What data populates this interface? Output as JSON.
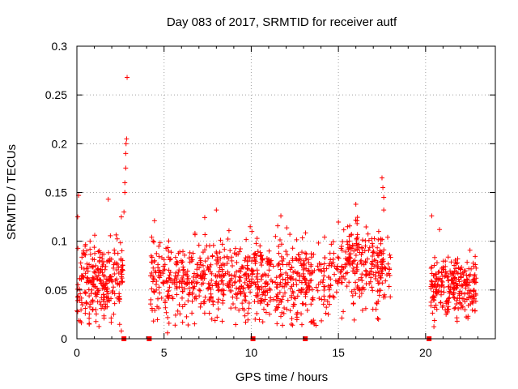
{
  "chart_data": {
    "type": "scatter",
    "title": "Day 083 of 2017, SRMTID for receiver autf",
    "xlabel": "GPS time / hours",
    "ylabel": "SRMTID / TECUs",
    "xlim": [
      0,
      24
    ],
    "ylim": [
      0,
      0.3
    ],
    "grid": true,
    "series_color": "#ff0000",
    "x_ticks": [
      {
        "value": 0,
        "label": "0"
      },
      {
        "value": 5,
        "label": "5"
      },
      {
        "value": 10,
        "label": "10"
      },
      {
        "value": 15,
        "label": "15"
      },
      {
        "value": 20,
        "label": "20"
      }
    ],
    "y_ticks": [
      {
        "value": 0,
        "label": "0"
      },
      {
        "value": 0.05,
        "label": "0.05"
      },
      {
        "value": 0.1,
        "label": "0.1"
      },
      {
        "value": 0.15,
        "label": "0.15"
      },
      {
        "value": 0.2,
        "label": "0.2"
      },
      {
        "value": 0.25,
        "label": "0.25"
      },
      {
        "value": 0.3,
        "label": "0.3"
      }
    ],
    "data_segments": [
      {
        "x_start": 0.0,
        "x_end": 2.65,
        "n": 260,
        "base": 0.055,
        "spread": 0.022
      },
      {
        "x_start": 4.2,
        "x_end": 18.0,
        "n": 1050,
        "base": 0.06,
        "spread": 0.02
      },
      {
        "x_start": 20.3,
        "x_end": 22.9,
        "n": 260,
        "base": 0.052,
        "spread": 0.016
      }
    ],
    "highlight_points": [
      {
        "x": 0.1,
        "y": 0.147
      },
      {
        "x": 0.05,
        "y": 0.125
      },
      {
        "x": 1.8,
        "y": 0.143
      },
      {
        "x": 2.55,
        "y": 0.008
      },
      {
        "x": 2.55,
        "y": 0.125
      },
      {
        "x": 2.7,
        "y": 0.13
      },
      {
        "x": 2.75,
        "y": 0.15
      },
      {
        "x": 2.75,
        "y": 0.16
      },
      {
        "x": 2.8,
        "y": 0.175
      },
      {
        "x": 2.8,
        "y": 0.19
      },
      {
        "x": 2.82,
        "y": 0.2
      },
      {
        "x": 2.85,
        "y": 0.205
      },
      {
        "x": 2.88,
        "y": 0.268
      },
      {
        "x": 4.45,
        "y": 0.121
      },
      {
        "x": 5.2,
        "y": 0.006
      },
      {
        "x": 8.0,
        "y": 0.132
      },
      {
        "x": 11.7,
        "y": 0.126
      },
      {
        "x": 16.0,
        "y": 0.138
      },
      {
        "x": 17.5,
        "y": 0.165
      },
      {
        "x": 17.55,
        "y": 0.155
      },
      {
        "x": 17.6,
        "y": 0.145
      },
      {
        "x": 17.6,
        "y": 0.132
      },
      {
        "x": 20.35,
        "y": 0.126
      },
      {
        "x": 20.8,
        "y": 0.112
      },
      {
        "x": 17.3,
        "y": 0.02
      },
      {
        "x": 12.3,
        "y": 0.015
      }
    ],
    "gap_markers": [
      {
        "x": 2.7,
        "y": 0
      },
      {
        "x": 4.15,
        "y": 0
      },
      {
        "x": 10.1,
        "y": 0
      },
      {
        "x": 13.1,
        "y": 0
      },
      {
        "x": 20.2,
        "y": 0
      }
    ]
  }
}
